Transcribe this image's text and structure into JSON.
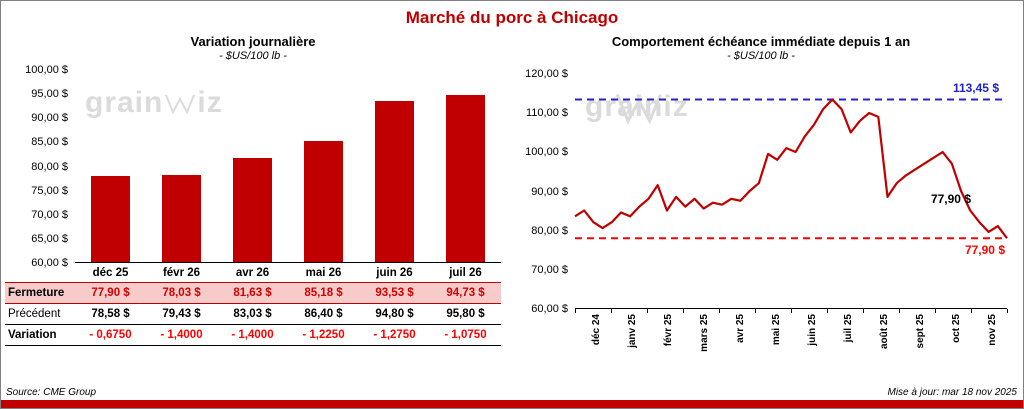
{
  "page": {
    "title": "Marché du porc à Chicago",
    "source": "Source: CME Group",
    "updated": "Mise à jour: mar 18 nov 2025",
    "accent_color": "#C00000"
  },
  "watermark": {
    "prefix": "grain",
    "suffix": "iz"
  },
  "table": {
    "columns": [
      "déc 25",
      "févr 26",
      "avr 26",
      "mai 26",
      "juin 26",
      "juil 26"
    ],
    "rows": [
      {
        "key": "fermeture",
        "label": "Fermeture",
        "values": [
          "77,90  $",
          "78,03  $",
          "81,63  $",
          "85,18  $",
          "93,53  $",
          "94,73  $"
        ]
      },
      {
        "key": "precedent",
        "label": "Précédent",
        "values": [
          "78,58  $",
          "79,43  $",
          "83,03  $",
          "86,40  $",
          "94,80  $",
          "95,80  $"
        ]
      },
      {
        "key": "variation",
        "label": "Variation",
        "values": [
          "- 0,6750",
          "- 1,4000",
          "- 1,4000",
          "- 1,2250",
          "- 1,2750",
          "- 1,0750"
        ]
      }
    ]
  },
  "chart_data": [
    {
      "type": "bar",
      "title": "Variation  journalière",
      "subtitle": "- $US/100 lb -",
      "categories": [
        "déc 25",
        "févr 26",
        "avr 26",
        "mai 26",
        "juin 26",
        "juil 26"
      ],
      "values": [
        77.9,
        78.03,
        81.63,
        85.18,
        93.53,
        94.73
      ],
      "ylim": [
        60,
        100
      ],
      "ytick_step": 5,
      "ytick_format": "0,00 $",
      "bar_color": "#C00000",
      "grid": false
    },
    {
      "type": "line",
      "title": "Comportement  échéance  immédiate  depuis 1 an",
      "subtitle": "- $US/100 lb -",
      "x_labels": [
        "déc 24",
        "janv 25",
        "févr 25",
        "mars 25",
        "avr 25",
        "mai 25",
        "juin 25",
        "juil 25",
        "août 25",
        "sept 25",
        "oct 25",
        "nov 25"
      ],
      "values": [
        83.5,
        85.0,
        82.0,
        80.5,
        82.0,
        84.5,
        83.5,
        86.0,
        88.0,
        91.5,
        85.0,
        88.5,
        86.0,
        88.0,
        85.5,
        87.0,
        86.5,
        88.0,
        87.5,
        90.0,
        92.0,
        99.5,
        98.0,
        101.0,
        100.0,
        104.0,
        107.0,
        111.0,
        113.45,
        111.0,
        105.0,
        108.0,
        110.0,
        109.0,
        88.5,
        92.0,
        94.0,
        95.5,
        97.0,
        98.5,
        100.0,
        97.0,
        90.0,
        85.0,
        82.0,
        79.5,
        81.0,
        77.9
      ],
      "ylim": [
        60,
        120
      ],
      "ytick_step": 10,
      "ytick_format": "0,00 $",
      "line_color": "#C00000",
      "grid": false,
      "annotations": {
        "max_line": {
          "value": 113.45,
          "label": "113,45 $",
          "color": "#2222CC",
          "style": "dashed"
        },
        "min_line": {
          "value": 77.9,
          "label": "77,90 $",
          "color": "#FF0000",
          "style": "dashed"
        },
        "last_point": {
          "value": 77.9,
          "label": "77,90 $",
          "color": "#000000"
        }
      }
    }
  ]
}
